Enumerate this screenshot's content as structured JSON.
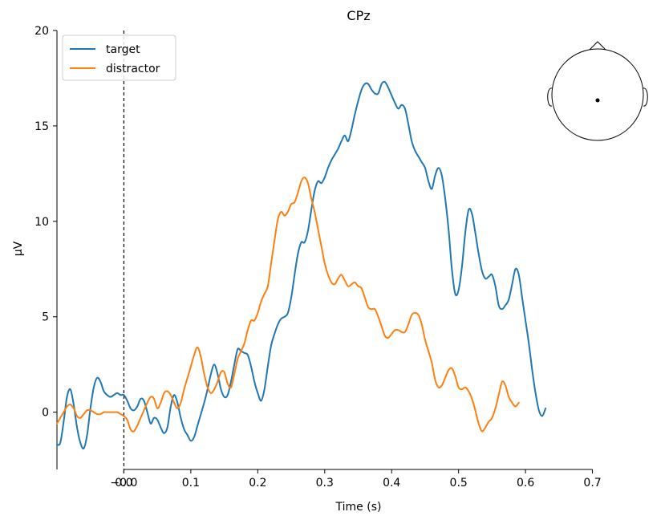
{
  "chart_data": {
    "type": "line",
    "title": "CPz",
    "xlabel": "Time (s)",
    "ylabel": "µV",
    "xlim": [
      -0.1,
      0.8
    ],
    "ylim": [
      -3,
      20
    ],
    "x_ticks": [
      0.0,
      0.1,
      0.2,
      0.3,
      0.4,
      0.5,
      0.6,
      0.7
    ],
    "x_tick_labels": [
      "−0.0",
      "0.0",
      "0.1",
      "0.2",
      "0.3",
      "0.4",
      "0.5",
      "0.6",
      "0.7"
    ],
    "x_tick_values": [
      -0.0001,
      0.0,
      0.1,
      0.2,
      0.3,
      0.4,
      0.5,
      0.6,
      0.7
    ],
    "y_ticks": [
      0,
      5,
      10,
      15,
      20
    ],
    "y_tick_labels": [
      "0",
      "5",
      "10",
      "15",
      "20"
    ],
    "event_marker_x": 0.0,
    "legend_position": "top-left",
    "sensor_inset": "top-right",
    "series": [
      {
        "name": "target",
        "color": "#1f77b4",
        "points": [
          [
            -0.1,
            -1.7
          ],
          [
            -0.095,
            -1.6
          ],
          [
            -0.09,
            -0.5
          ],
          [
            -0.085,
            0.8
          ],
          [
            -0.08,
            1.2
          ],
          [
            -0.075,
            0.4
          ],
          [
            -0.07,
            -0.8
          ],
          [
            -0.065,
            -1.6
          ],
          [
            -0.06,
            -1.9
          ],
          [
            -0.055,
            -1.2
          ],
          [
            -0.05,
            0.2
          ],
          [
            -0.045,
            1.3
          ],
          [
            -0.04,
            1.8
          ],
          [
            -0.035,
            1.6
          ],
          [
            -0.03,
            1.1
          ],
          [
            -0.025,
            0.9
          ],
          [
            -0.02,
            0.8
          ],
          [
            -0.015,
            0.9
          ],
          [
            -0.01,
            1.0
          ],
          [
            -0.005,
            0.9
          ],
          [
            0.0,
            0.9
          ],
          [
            0.005,
            0.6
          ],
          [
            0.01,
            0.2
          ],
          [
            0.015,
            0.1
          ],
          [
            0.02,
            0.3
          ],
          [
            0.025,
            0.7
          ],
          [
            0.03,
            0.6
          ],
          [
            0.035,
            0.0
          ],
          [
            0.04,
            -0.6
          ],
          [
            0.045,
            -0.3
          ],
          [
            0.05,
            -0.4
          ],
          [
            0.055,
            -0.8
          ],
          [
            0.06,
            -1.1
          ],
          [
            0.065,
            -0.8
          ],
          [
            0.07,
            0.3
          ],
          [
            0.075,
            0.9
          ],
          [
            0.08,
            0.5
          ],
          [
            0.085,
            -0.3
          ],
          [
            0.09,
            -0.9
          ],
          [
            0.095,
            -1.2
          ],
          [
            0.1,
            -1.5
          ],
          [
            0.105,
            -1.3
          ],
          [
            0.11,
            -0.7
          ],
          [
            0.115,
            -0.1
          ],
          [
            0.12,
            0.5
          ],
          [
            0.125,
            1.2
          ],
          [
            0.13,
            2.0
          ],
          [
            0.135,
            2.5
          ],
          [
            0.14,
            2.0
          ],
          [
            0.145,
            1.2
          ],
          [
            0.15,
            0.8
          ],
          [
            0.155,
            0.9
          ],
          [
            0.16,
            1.6
          ],
          [
            0.165,
            2.5
          ],
          [
            0.17,
            3.3
          ],
          [
            0.175,
            3.2
          ],
          [
            0.18,
            3.1
          ],
          [
            0.185,
            3.0
          ],
          [
            0.19,
            2.4
          ],
          [
            0.195,
            1.6
          ],
          [
            0.2,
            1.0
          ],
          [
            0.205,
            0.6
          ],
          [
            0.21,
            1.2
          ],
          [
            0.215,
            2.4
          ],
          [
            0.22,
            3.5
          ],
          [
            0.225,
            4.1
          ],
          [
            0.23,
            4.6
          ],
          [
            0.235,
            4.9
          ],
          [
            0.24,
            5.0
          ],
          [
            0.245,
            5.2
          ],
          [
            0.25,
            6.0
          ],
          [
            0.255,
            7.2
          ],
          [
            0.26,
            8.3
          ],
          [
            0.265,
            8.9
          ],
          [
            0.27,
            8.9
          ],
          [
            0.275,
            9.5
          ],
          [
            0.28,
            10.6
          ],
          [
            0.285,
            11.6
          ],
          [
            0.29,
            12.1
          ],
          [
            0.295,
            12.0
          ],
          [
            0.3,
            12.3
          ],
          [
            0.305,
            12.8
          ],
          [
            0.31,
            13.2
          ],
          [
            0.315,
            13.5
          ],
          [
            0.32,
            13.8
          ],
          [
            0.325,
            14.2
          ],
          [
            0.33,
            14.5
          ],
          [
            0.335,
            14.2
          ],
          [
            0.34,
            14.8
          ],
          [
            0.345,
            15.6
          ],
          [
            0.35,
            16.3
          ],
          [
            0.355,
            16.9
          ],
          [
            0.36,
            17.2
          ],
          [
            0.365,
            17.2
          ],
          [
            0.37,
            16.9
          ],
          [
            0.375,
            16.7
          ],
          [
            0.38,
            16.7
          ],
          [
            0.385,
            17.2
          ],
          [
            0.39,
            17.3
          ],
          [
            0.395,
            17.0
          ],
          [
            0.4,
            16.6
          ],
          [
            0.405,
            16.2
          ],
          [
            0.41,
            15.9
          ],
          [
            0.415,
            16.1
          ],
          [
            0.42,
            15.9
          ],
          [
            0.425,
            15.1
          ],
          [
            0.43,
            14.2
          ],
          [
            0.435,
            13.7
          ],
          [
            0.44,
            13.4
          ],
          [
            0.445,
            13.1
          ],
          [
            0.45,
            12.8
          ],
          [
            0.455,
            12.1
          ],
          [
            0.46,
            11.7
          ],
          [
            0.465,
            12.4
          ],
          [
            0.47,
            12.8
          ],
          [
            0.475,
            12.4
          ],
          [
            0.48,
            11.2
          ],
          [
            0.485,
            9.6
          ],
          [
            0.49,
            7.5
          ],
          [
            0.495,
            6.2
          ],
          [
            0.5,
            6.4
          ],
          [
            0.505,
            7.6
          ],
          [
            0.51,
            9.4
          ],
          [
            0.515,
            10.6
          ],
          [
            0.52,
            10.4
          ],
          [
            0.525,
            9.4
          ],
          [
            0.53,
            8.3
          ],
          [
            0.535,
            7.4
          ],
          [
            0.54,
            7.0
          ],
          [
            0.545,
            7.1
          ],
          [
            0.55,
            7.2
          ],
          [
            0.555,
            6.6
          ],
          [
            0.56,
            5.6
          ],
          [
            0.565,
            5.4
          ],
          [
            0.57,
            5.6
          ],
          [
            0.575,
            5.9
          ],
          [
            0.58,
            6.7
          ],
          [
            0.585,
            7.5
          ],
          [
            0.59,
            7.2
          ],
          [
            0.595,
            6.0
          ],
          [
            0.6,
            4.8
          ],
          [
            0.605,
            3.6
          ],
          [
            0.61,
            2.2
          ],
          [
            0.615,
            1.0
          ],
          [
            0.62,
            0.1
          ],
          [
            0.625,
            -0.2
          ],
          [
            0.63,
            0.2
          ]
        ]
      },
      {
        "name": "distractor",
        "color": "#ff7f0e",
        "points": [
          [
            -0.1,
            -0.6
          ],
          [
            -0.095,
            -0.3
          ],
          [
            -0.09,
            0.0
          ],
          [
            -0.085,
            0.3
          ],
          [
            -0.08,
            0.4
          ],
          [
            -0.075,
            0.2
          ],
          [
            -0.07,
            -0.2
          ],
          [
            -0.065,
            -0.3
          ],
          [
            -0.06,
            -0.1
          ],
          [
            -0.055,
            0.1
          ],
          [
            -0.05,
            0.1
          ],
          [
            -0.045,
            0.0
          ],
          [
            -0.04,
            -0.1
          ],
          [
            -0.035,
            -0.1
          ],
          [
            -0.03,
            0.0
          ],
          [
            -0.025,
            0.0
          ],
          [
            -0.02,
            0.0
          ],
          [
            -0.015,
            0.0
          ],
          [
            -0.01,
            0.0
          ],
          [
            -0.005,
            -0.1
          ],
          [
            0.0,
            -0.2
          ],
          [
            0.005,
            -0.4
          ],
          [
            0.01,
            -0.9
          ],
          [
            0.015,
            -1.0
          ],
          [
            0.02,
            -0.7
          ],
          [
            0.025,
            -0.3
          ],
          [
            0.03,
            0.1
          ],
          [
            0.035,
            0.5
          ],
          [
            0.04,
            0.8
          ],
          [
            0.045,
            0.7
          ],
          [
            0.05,
            0.2
          ],
          [
            0.055,
            0.5
          ],
          [
            0.06,
            1.0
          ],
          [
            0.065,
            1.1
          ],
          [
            0.07,
            0.9
          ],
          [
            0.075,
            0.5
          ],
          [
            0.08,
            0.2
          ],
          [
            0.085,
            0.5
          ],
          [
            0.09,
            1.2
          ],
          [
            0.095,
            1.8
          ],
          [
            0.1,
            2.4
          ],
          [
            0.105,
            3.0
          ],
          [
            0.11,
            3.4
          ],
          [
            0.115,
            2.9
          ],
          [
            0.12,
            2.0
          ],
          [
            0.125,
            1.3
          ],
          [
            0.13,
            1.0
          ],
          [
            0.135,
            1.2
          ],
          [
            0.14,
            1.6
          ],
          [
            0.145,
            2.1
          ],
          [
            0.15,
            2.1
          ],
          [
            0.155,
            1.5
          ],
          [
            0.16,
            1.3
          ],
          [
            0.165,
            2.0
          ],
          [
            0.17,
            2.8
          ],
          [
            0.175,
            3.2
          ],
          [
            0.18,
            3.6
          ],
          [
            0.185,
            4.3
          ],
          [
            0.19,
            4.8
          ],
          [
            0.195,
            4.8
          ],
          [
            0.2,
            5.2
          ],
          [
            0.205,
            5.8
          ],
          [
            0.21,
            6.2
          ],
          [
            0.215,
            6.6
          ],
          [
            0.22,
            7.8
          ],
          [
            0.225,
            9.0
          ],
          [
            0.23,
            10.1
          ],
          [
            0.235,
            10.5
          ],
          [
            0.24,
            10.3
          ],
          [
            0.245,
            10.5
          ],
          [
            0.25,
            10.9
          ],
          [
            0.255,
            11.0
          ],
          [
            0.26,
            11.5
          ],
          [
            0.265,
            12.1
          ],
          [
            0.27,
            12.3
          ],
          [
            0.275,
            12.0
          ],
          [
            0.28,
            11.2
          ],
          [
            0.285,
            10.5
          ],
          [
            0.29,
            9.6
          ],
          [
            0.295,
            8.7
          ],
          [
            0.3,
            7.8
          ],
          [
            0.305,
            7.2
          ],
          [
            0.31,
            6.8
          ],
          [
            0.315,
            6.7
          ],
          [
            0.32,
            7.0
          ],
          [
            0.325,
            7.2
          ],
          [
            0.33,
            6.9
          ],
          [
            0.335,
            6.6
          ],
          [
            0.34,
            6.7
          ],
          [
            0.345,
            6.8
          ],
          [
            0.35,
            6.6
          ],
          [
            0.355,
            6.5
          ],
          [
            0.36,
            6.0
          ],
          [
            0.365,
            5.5
          ],
          [
            0.37,
            5.4
          ],
          [
            0.375,
            5.4
          ],
          [
            0.38,
            5.0
          ],
          [
            0.385,
            4.5
          ],
          [
            0.39,
            4.0
          ],
          [
            0.395,
            3.9
          ],
          [
            0.4,
            4.1
          ],
          [
            0.405,
            4.3
          ],
          [
            0.41,
            4.3
          ],
          [
            0.415,
            4.2
          ],
          [
            0.42,
            4.2
          ],
          [
            0.425,
            4.6
          ],
          [
            0.43,
            5.1
          ],
          [
            0.435,
            5.2
          ],
          [
            0.44,
            5.1
          ],
          [
            0.445,
            4.6
          ],
          [
            0.45,
            3.8
          ],
          [
            0.455,
            3.2
          ],
          [
            0.46,
            2.6
          ],
          [
            0.465,
            1.7
          ],
          [
            0.47,
            1.3
          ],
          [
            0.475,
            1.4
          ],
          [
            0.48,
            1.8
          ],
          [
            0.485,
            2.2
          ],
          [
            0.49,
            2.3
          ],
          [
            0.495,
            1.9
          ],
          [
            0.5,
            1.3
          ],
          [
            0.505,
            1.2
          ],
          [
            0.51,
            1.3
          ],
          [
            0.515,
            1.1
          ],
          [
            0.52,
            0.7
          ],
          [
            0.525,
            0.1
          ],
          [
            0.53,
            -0.6
          ],
          [
            0.535,
            -1.0
          ],
          [
            0.54,
            -0.8
          ],
          [
            0.545,
            -0.5
          ],
          [
            0.55,
            -0.3
          ],
          [
            0.555,
            0.2
          ],
          [
            0.56,
            0.9
          ],
          [
            0.565,
            1.6
          ],
          [
            0.57,
            1.4
          ],
          [
            0.575,
            0.8
          ],
          [
            0.58,
            0.5
          ],
          [
            0.585,
            0.3
          ],
          [
            0.59,
            0.5
          ]
        ]
      }
    ]
  }
}
